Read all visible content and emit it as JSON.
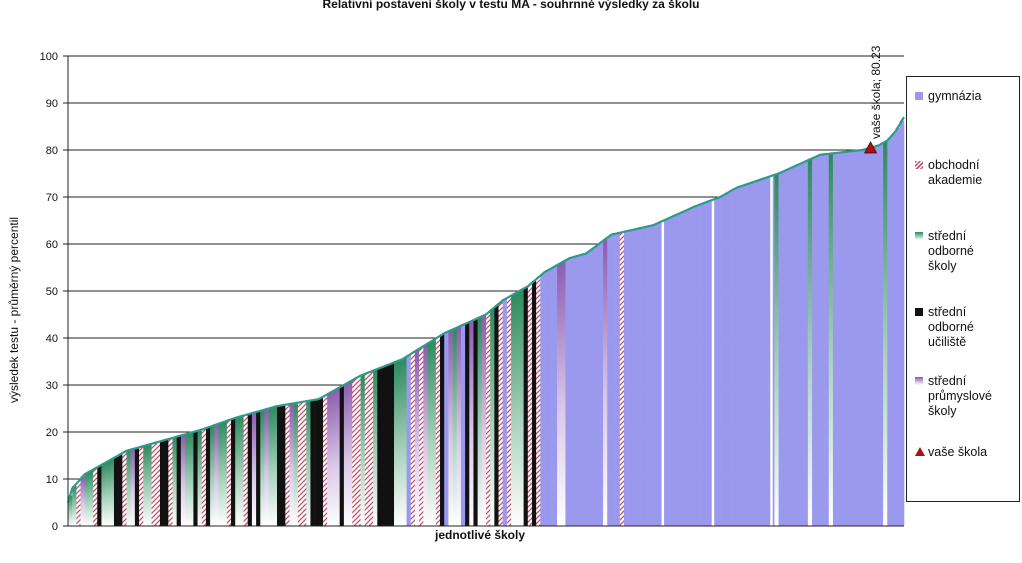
{
  "chart_data": {
    "type": "area",
    "title": "Relativní postavení školy v testu MA - souhrnné výsledky za školu",
    "xlabel": "jednotlivé školy",
    "ylabel": "výsledek testu - průměrný percentil",
    "ylim": [
      0,
      100
    ],
    "yticks": [
      0,
      10,
      20,
      30,
      40,
      50,
      60,
      70,
      80,
      90,
      100
    ],
    "grid": true,
    "legend_position": "right",
    "categories": [
      "gymnázia",
      "obchodní akademie",
      "střední odborné školy",
      "střední odborné učiliště",
      "střední průmyslové školy",
      "vaše škola"
    ],
    "colors": {
      "gymnázia": "#9a99ee",
      "obchodní akademie": "#c0506a",
      "střední odborné školy": "#3a8a66",
      "střední odborné učiliště": "#111111",
      "střední průmyslové školy": "#7a4a9a",
      "vaše škola": "#aa1111"
    },
    "curve": {
      "x": [
        0,
        0.5,
        1,
        2,
        3,
        5,
        7,
        10,
        13,
        16,
        20,
        25,
        30,
        33,
        35,
        40,
        45,
        50,
        52,
        55,
        57,
        60,
        62,
        65,
        70,
        75,
        78,
        80,
        85,
        90,
        95,
        97,
        98,
        99,
        100
      ],
      "y": [
        5,
        8,
        9,
        11,
        12,
        14,
        16,
        17.5,
        19,
        20.5,
        23,
        25.5,
        27,
        30,
        32,
        35.5,
        41,
        45,
        48,
        51,
        54,
        57,
        58,
        62,
        64,
        68,
        70,
        72,
        75,
        79,
        80,
        81,
        82,
        84,
        87
      ]
    },
    "your_school": {
      "label": "vaše škola; 80.23",
      "x": 96,
      "y": 80.23
    }
  }
}
